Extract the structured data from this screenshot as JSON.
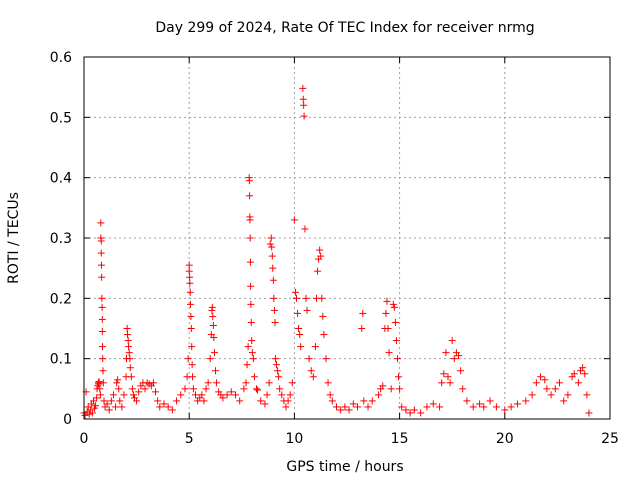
{
  "chart_data": {
    "type": "scatter",
    "title": "Day 299 of 2024, Rate Of TEC Index for receiver nrmg",
    "xlabel": "GPS time / hours",
    "ylabel": "ROTI / TECUs",
    "xlim": [
      0,
      25
    ],
    "ylim": [
      0,
      0.6
    ],
    "xticks": [
      0,
      5,
      10,
      15,
      20,
      25
    ],
    "yticks": [
      0,
      0.1,
      0.2,
      0.3,
      0.4,
      0.5,
      0.6
    ],
    "xtick_labels": [
      "0",
      "5",
      "10",
      "15",
      "20",
      "25"
    ],
    "ytick_labels": [
      "0",
      "0.1",
      "0.2",
      "0.3",
      "0.4",
      "0.5",
      "0.6"
    ],
    "grid": true,
    "marker": "+",
    "color": "#ff0000",
    "series": [
      {
        "name": "ROTI",
        "points": [
          [
            0.0,
            0.01
          ],
          [
            0.05,
            0.006
          ],
          [
            0.1,
            0.045
          ],
          [
            0.15,
            0.012
          ],
          [
            0.2,
            0.02
          ],
          [
            0.25,
            0.008
          ],
          [
            0.3,
            0.015
          ],
          [
            0.35,
            0.025
          ],
          [
            0.4,
            0.01
          ],
          [
            0.45,
            0.03
          ],
          [
            0.5,
            0.018
          ],
          [
            0.55,
            0.022
          ],
          [
            0.6,
            0.035
          ],
          [
            0.62,
            0.05
          ],
          [
            0.65,
            0.055
          ],
          [
            0.68,
            0.06
          ],
          [
            0.7,
            0.058
          ],
          [
            0.72,
            0.062
          ],
          [
            0.75,
            0.05
          ],
          [
            0.78,
            0.04
          ],
          [
            0.8,
            0.325
          ],
          [
            0.8,
            0.3
          ],
          [
            0.82,
            0.295
          ],
          [
            0.82,
            0.275
          ],
          [
            0.83,
            0.255
          ],
          [
            0.84,
            0.235
          ],
          [
            0.85,
            0.2
          ],
          [
            0.86,
            0.185
          ],
          [
            0.87,
            0.165
          ],
          [
            0.87,
            0.145
          ],
          [
            0.88,
            0.12
          ],
          [
            0.89,
            0.1
          ],
          [
            0.9,
            0.08
          ],
          [
            0.92,
            0.06
          ],
          [
            0.95,
            0.03
          ],
          [
            1.0,
            0.02
          ],
          [
            1.1,
            0.025
          ],
          [
            1.2,
            0.015
          ],
          [
            1.3,
            0.03
          ],
          [
            1.4,
            0.04
          ],
          [
            1.5,
            0.02
          ],
          [
            1.55,
            0.06
          ],
          [
            1.6,
            0.065
          ],
          [
            1.65,
            0.05
          ],
          [
            1.7,
            0.03
          ],
          [
            1.8,
            0.02
          ],
          [
            1.9,
            0.04
          ],
          [
            2.0,
            0.07
          ],
          [
            2.02,
            0.1
          ],
          [
            2.05,
            0.15
          ],
          [
            2.07,
            0.14
          ],
          [
            2.1,
            0.13
          ],
          [
            2.12,
            0.12
          ],
          [
            2.15,
            0.11
          ],
          [
            2.18,
            0.1
          ],
          [
            2.2,
            0.085
          ],
          [
            2.25,
            0.07
          ],
          [
            2.3,
            0.05
          ],
          [
            2.35,
            0.04
          ],
          [
            2.4,
            0.035
          ],
          [
            2.5,
            0.03
          ],
          [
            2.6,
            0.045
          ],
          [
            2.7,
            0.055
          ],
          [
            2.8,
            0.06
          ],
          [
            2.9,
            0.05
          ],
          [
            3.0,
            0.06
          ],
          [
            3.1,
            0.058
          ],
          [
            3.2,
            0.055
          ],
          [
            3.3,
            0.06
          ],
          [
            3.4,
            0.045
          ],
          [
            3.5,
            0.03
          ],
          [
            3.6,
            0.02
          ],
          [
            3.8,
            0.025
          ],
          [
            4.0,
            0.02
          ],
          [
            4.2,
            0.015
          ],
          [
            4.4,
            0.03
          ],
          [
            4.6,
            0.04
          ],
          [
            4.8,
            0.05
          ],
          [
            4.9,
            0.07
          ],
          [
            4.95,
            0.1
          ],
          [
            5.0,
            0.255
          ],
          [
            5.0,
            0.245
          ],
          [
            5.02,
            0.235
          ],
          [
            5.03,
            0.225
          ],
          [
            5.05,
            0.21
          ],
          [
            5.06,
            0.19
          ],
          [
            5.08,
            0.17
          ],
          [
            5.1,
            0.15
          ],
          [
            5.12,
            0.12
          ],
          [
            5.14,
            0.09
          ],
          [
            5.16,
            0.07
          ],
          [
            5.2,
            0.05
          ],
          [
            5.3,
            0.04
          ],
          [
            5.4,
            0.03
          ],
          [
            5.5,
            0.035
          ],
          [
            5.6,
            0.04
          ],
          [
            5.7,
            0.03
          ],
          [
            5.8,
            0.05
          ],
          [
            5.9,
            0.06
          ],
          [
            6.0,
            0.1
          ],
          [
            6.05,
            0.14
          ],
          [
            6.08,
            0.18
          ],
          [
            6.1,
            0.185
          ],
          [
            6.12,
            0.17
          ],
          [
            6.15,
            0.155
          ],
          [
            6.17,
            0.135
          ],
          [
            6.2,
            0.11
          ],
          [
            6.25,
            0.08
          ],
          [
            6.3,
            0.06
          ],
          [
            6.4,
            0.045
          ],
          [
            6.5,
            0.04
          ],
          [
            6.6,
            0.035
          ],
          [
            6.8,
            0.04
          ],
          [
            7.0,
            0.045
          ],
          [
            7.2,
            0.04
          ],
          [
            7.4,
            0.03
          ],
          [
            7.6,
            0.05
          ],
          [
            7.7,
            0.06
          ],
          [
            7.75,
            0.09
          ],
          [
            7.8,
            0.12
          ],
          [
            7.85,
            0.4
          ],
          [
            7.86,
            0.395
          ],
          [
            7.87,
            0.37
          ],
          [
            7.88,
            0.335
          ],
          [
            7.89,
            0.33
          ],
          [
            7.9,
            0.3
          ],
          [
            7.91,
            0.26
          ],
          [
            7.92,
            0.22
          ],
          [
            7.93,
            0.19
          ],
          [
            7.95,
            0.16
          ],
          [
            7.97,
            0.13
          ],
          [
            8.0,
            0.11
          ],
          [
            8.05,
            0.1
          ],
          [
            8.1,
            0.07
          ],
          [
            8.2,
            0.05
          ],
          [
            8.25,
            0.048
          ],
          [
            8.4,
            0.03
          ],
          [
            8.6,
            0.025
          ],
          [
            8.7,
            0.04
          ],
          [
            8.8,
            0.06
          ],
          [
            8.85,
            0.29
          ],
          [
            8.9,
            0.3
          ],
          [
            8.92,
            0.285
          ],
          [
            8.95,
            0.27
          ],
          [
            8.97,
            0.25
          ],
          [
            9.0,
            0.23
          ],
          [
            9.02,
            0.2
          ],
          [
            9.05,
            0.18
          ],
          [
            9.08,
            0.16
          ],
          [
            9.1,
            0.1
          ],
          [
            9.15,
            0.09
          ],
          [
            9.2,
            0.08
          ],
          [
            9.25,
            0.07
          ],
          [
            9.3,
            0.05
          ],
          [
            9.4,
            0.04
          ],
          [
            9.5,
            0.03
          ],
          [
            9.6,
            0.02
          ],
          [
            9.7,
            0.03
          ],
          [
            9.8,
            0.04
          ],
          [
            9.9,
            0.06
          ],
          [
            10.0,
            0.33
          ],
          [
            10.05,
            0.21
          ],
          [
            10.1,
            0.2
          ],
          [
            10.15,
            0.175
          ],
          [
            10.2,
            0.15
          ],
          [
            10.25,
            0.14
          ],
          [
            10.3,
            0.12
          ],
          [
            10.4,
            0.548
          ],
          [
            10.42,
            0.53
          ],
          [
            10.44,
            0.52
          ],
          [
            10.46,
            0.502
          ],
          [
            10.5,
            0.315
          ],
          [
            10.55,
            0.2
          ],
          [
            10.6,
            0.18
          ],
          [
            10.7,
            0.1
          ],
          [
            10.8,
            0.08
          ],
          [
            10.9,
            0.07
          ],
          [
            11.0,
            0.12
          ],
          [
            11.05,
            0.2
          ],
          [
            11.1,
            0.245
          ],
          [
            11.15,
            0.265
          ],
          [
            11.2,
            0.28
          ],
          [
            11.25,
            0.27
          ],
          [
            11.3,
            0.2
          ],
          [
            11.35,
            0.17
          ],
          [
            11.4,
            0.14
          ],
          [
            11.5,
            0.1
          ],
          [
            11.6,
            0.06
          ],
          [
            11.7,
            0.04
          ],
          [
            11.8,
            0.03
          ],
          [
            12.0,
            0.02
          ],
          [
            12.2,
            0.015
          ],
          [
            12.4,
            0.02
          ],
          [
            12.6,
            0.015
          ],
          [
            12.8,
            0.025
          ],
          [
            13.0,
            0.02
          ],
          [
            13.2,
            0.15
          ],
          [
            13.25,
            0.175
          ],
          [
            13.3,
            0.03
          ],
          [
            13.5,
            0.02
          ],
          [
            13.7,
            0.03
          ],
          [
            14.0,
            0.04
          ],
          [
            14.1,
            0.05
          ],
          [
            14.2,
            0.055
          ],
          [
            14.3,
            0.15
          ],
          [
            14.35,
            0.175
          ],
          [
            14.4,
            0.195
          ],
          [
            14.45,
            0.15
          ],
          [
            14.5,
            0.11
          ],
          [
            14.6,
            0.05
          ],
          [
            14.7,
            0.19
          ],
          [
            14.75,
            0.185
          ],
          [
            14.8,
            0.16
          ],
          [
            14.85,
            0.13
          ],
          [
            14.9,
            0.1
          ],
          [
            14.95,
            0.07
          ],
          [
            15.0,
            0.05
          ],
          [
            15.1,
            0.02
          ],
          [
            15.3,
            0.015
          ],
          [
            15.5,
            0.01
          ],
          [
            15.7,
            0.015
          ],
          [
            16.0,
            0.01
          ],
          [
            16.3,
            0.02
          ],
          [
            16.6,
            0.025
          ],
          [
            16.9,
            0.02
          ],
          [
            17.0,
            0.06
          ],
          [
            17.1,
            0.075
          ],
          [
            17.2,
            0.11
          ],
          [
            17.3,
            0.07
          ],
          [
            17.4,
            0.06
          ],
          [
            17.5,
            0.13
          ],
          [
            17.6,
            0.1
          ],
          [
            17.7,
            0.11
          ],
          [
            17.8,
            0.105
          ],
          [
            17.9,
            0.08
          ],
          [
            18.0,
            0.05
          ],
          [
            18.2,
            0.03
          ],
          [
            18.5,
            0.02
          ],
          [
            18.8,
            0.025
          ],
          [
            19.0,
            0.02
          ],
          [
            19.3,
            0.03
          ],
          [
            19.6,
            0.02
          ],
          [
            20.0,
            0.015
          ],
          [
            20.3,
            0.02
          ],
          [
            20.6,
            0.025
          ],
          [
            21.0,
            0.03
          ],
          [
            21.3,
            0.04
          ],
          [
            21.5,
            0.06
          ],
          [
            21.7,
            0.07
          ],
          [
            21.9,
            0.065
          ],
          [
            22.0,
            0.05
          ],
          [
            22.2,
            0.04
          ],
          [
            22.4,
            0.05
          ],
          [
            22.6,
            0.06
          ],
          [
            22.8,
            0.03
          ],
          [
            23.0,
            0.04
          ],
          [
            23.2,
            0.07
          ],
          [
            23.3,
            0.075
          ],
          [
            23.5,
            0.06
          ],
          [
            23.6,
            0.08
          ],
          [
            23.7,
            0.085
          ],
          [
            23.8,
            0.075
          ],
          [
            23.9,
            0.04
          ],
          [
            24.0,
            0.01
          ]
        ]
      }
    ]
  }
}
